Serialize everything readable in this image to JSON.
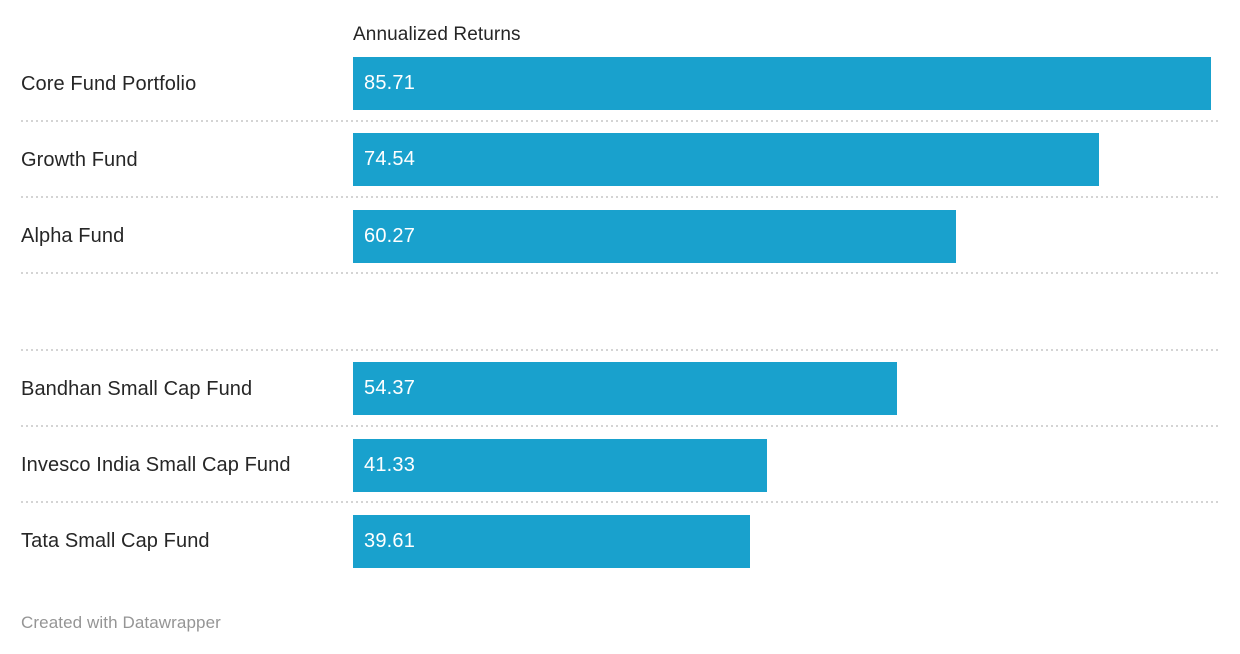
{
  "chart": {
    "column_header": "Annualized Returns",
    "attribution": "Created with Datawrapper",
    "colors": {
      "bar": "#19A1CD",
      "label": "#262626",
      "value_label": "#FFFFFF",
      "separator": "#D4D4D4",
      "attribution_text": "#959595",
      "background": "#FFFFFF"
    },
    "rows": [
      {
        "label": "Core Fund Portfolio",
        "value": 85.71,
        "value_label": "85.71"
      },
      {
        "label": "Growth Fund",
        "value": 74.54,
        "value_label": "74.54"
      },
      {
        "label": "Alpha Fund",
        "value": 60.27,
        "value_label": "60.27"
      },
      {
        "label": "",
        "value": null,
        "value_label": ""
      },
      {
        "label": "Bandhan Small Cap Fund",
        "value": 54.37,
        "value_label": "54.37"
      },
      {
        "label": "Invesco India Small Cap Fund",
        "value": 41.33,
        "value_label": "41.33"
      },
      {
        "label": "Tata Small Cap Fund",
        "value": 39.61,
        "value_label": "39.61"
      }
    ]
  },
  "chart_data": {
    "type": "bar",
    "orientation": "horizontal",
    "title": "Annualized Returns",
    "categories": [
      "Core Fund Portfolio",
      "Growth Fund",
      "Alpha Fund",
      "",
      "Bandhan Small Cap Fund",
      "Invesco India Small Cap Fund",
      "Tata Small Cap Fund"
    ],
    "values": [
      85.71,
      74.54,
      60.27,
      null,
      54.37,
      41.33,
      39.61
    ],
    "xlabel": "Annualized Returns",
    "ylabel": "",
    "xlim": [
      0,
      86.4
    ],
    "grid": false,
    "legend": "none",
    "value_labels": "inside-start",
    "bar_color": "#19A1CD",
    "annotations": [
      "Created with Datawrapper"
    ]
  }
}
